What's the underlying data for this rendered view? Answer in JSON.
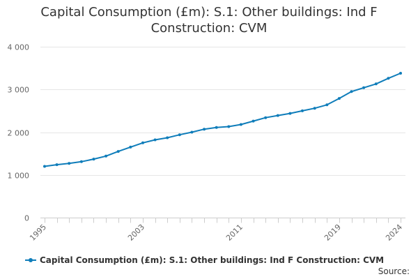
{
  "chart_data": {
    "type": "line",
    "title_lines": [
      "Capital Consumption (£m): S.1: Other buildings: Ind F",
      "Construction: CVM"
    ],
    "x": [
      1995,
      1996,
      1997,
      1998,
      1999,
      2000,
      2001,
      2002,
      2003,
      2004,
      2005,
      2006,
      2007,
      2008,
      2009,
      2010,
      2011,
      2012,
      2013,
      2014,
      2015,
      2016,
      2017,
      2018,
      2019,
      2020,
      2021,
      2022,
      2023,
      2024
    ],
    "series": [
      {
        "name": "Capital Consumption (£m): S.1: Other buildings: Ind F Construction: CVM",
        "color": "#0f7dba",
        "values": [
          1200,
          1240,
          1270,
          1310,
          1370,
          1440,
          1550,
          1650,
          1750,
          1820,
          1870,
          1940,
          2000,
          2070,
          2110,
          2130,
          2180,
          2260,
          2340,
          2390,
          2440,
          2500,
          2560,
          2640,
          2790,
          2950,
          3040,
          3130,
          3260,
          3380
        ]
      }
    ],
    "x_tick_labels": [
      "1995",
      "2003",
      "2011",
      "2019",
      "2024"
    ],
    "y_ticks": [
      0,
      1000,
      2000,
      3000,
      4000
    ],
    "y_tick_labels": [
      "0",
      "1 000",
      "2 000",
      "3 000",
      "4 000"
    ],
    "ylim": [
      0,
      4000
    ],
    "xlim": [
      1995,
      2024
    ],
    "grid": true,
    "legend_position": "bottom"
  },
  "footer": {
    "source_label": "Source:"
  }
}
